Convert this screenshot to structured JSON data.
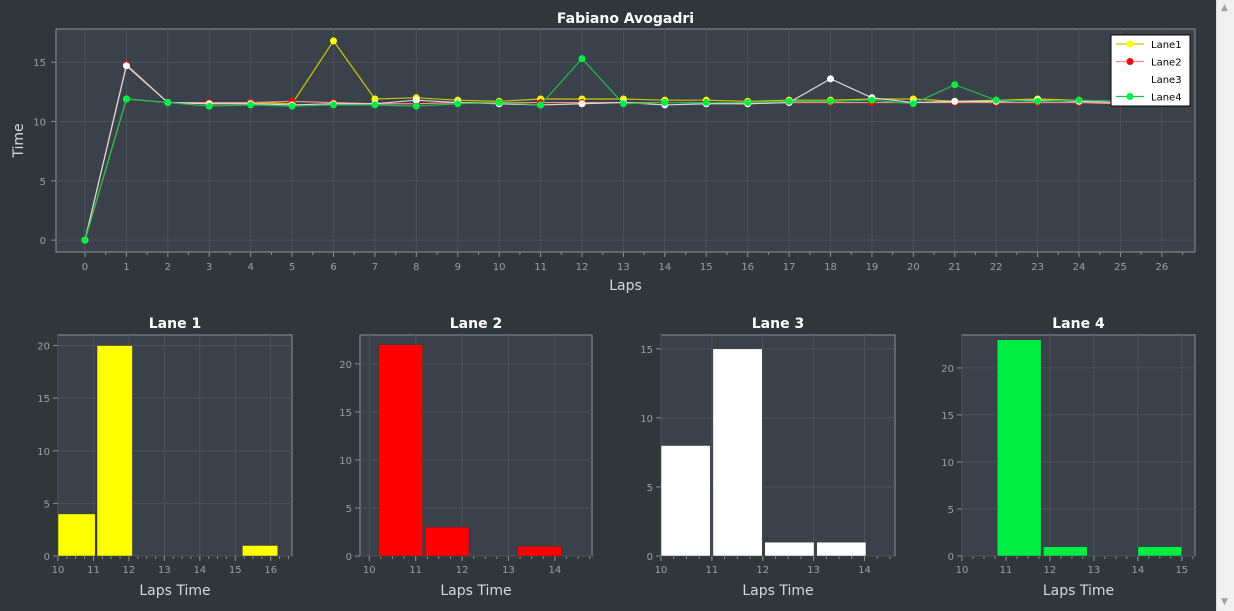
{
  "colors": {
    "background": "#31363b",
    "plot_bg": "#3b414a",
    "grid": "#4b525b",
    "axis": "#8a9097",
    "tick_text": "#9aa0a6",
    "label_text": "#d6d9dc",
    "title_text": "#ffffff",
    "lane1": "#ffff00",
    "lane2": "#ff0000",
    "lane3": "#ffffff",
    "lane4": "#00ee44",
    "lane1_line": "#c8c800",
    "lane2_line": "#ff8a8a",
    "lane3_line": "#d8d8d8",
    "lane4_line": "#22bb55"
  },
  "chart_data": [
    {
      "type": "line",
      "title": "Fabiano Avogadri",
      "xlabel": "Laps",
      "ylabel": "Time",
      "xlim": [
        -0.7,
        26.8
      ],
      "ylim": [
        -1,
        17.8
      ],
      "xticks": [
        "0",
        "1",
        "2",
        "3",
        "4",
        "5",
        "6",
        "7",
        "8",
        "9",
        "10",
        "11",
        "12",
        "13",
        "14",
        "15",
        "16",
        "17",
        "18",
        "19",
        "20",
        "21",
        "22",
        "23",
        "24",
        "25",
        "26"
      ],
      "yticks": [
        "0",
        "5",
        "10",
        "15"
      ],
      "grid": true,
      "legend": "top-right",
      "series": [
        {
          "name": "Lane1",
          "x": [
            0,
            1,
            2,
            3,
            4,
            5,
            6,
            7,
            8,
            9,
            10,
            11,
            12,
            13,
            14,
            15,
            16,
            17,
            18,
            19,
            20,
            21,
            22,
            23,
            24,
            25,
            26
          ],
          "values": [
            0,
            11.9,
            11.6,
            11.5,
            11.6,
            11.5,
            16.8,
            11.9,
            12.0,
            11.8,
            11.7,
            11.9,
            11.9,
            11.9,
            11.8,
            11.8,
            11.7,
            11.8,
            11.8,
            11.9,
            11.9,
            11.7,
            11.8,
            11.9,
            11.8,
            11.7,
            11.9
          ]
        },
        {
          "name": "Lane2",
          "x": [
            0,
            1,
            2,
            3,
            4,
            5,
            6,
            7,
            8,
            9,
            10,
            11,
            12,
            13,
            14,
            15,
            16,
            17,
            18,
            19,
            20,
            21,
            22,
            23,
            24,
            25
          ],
          "values": [
            0,
            14.8,
            11.6,
            11.6,
            11.6,
            11.7,
            11.6,
            11.5,
            11.5,
            11.6,
            11.6,
            11.6,
            11.6,
            11.6,
            11.6,
            11.6,
            11.5,
            11.6,
            11.6,
            11.6,
            11.6,
            11.6,
            11.6,
            11.6,
            11.6,
            11.5
          ]
        },
        {
          "name": "Lane3",
          "x": [
            0,
            1,
            2,
            3,
            4,
            5,
            6,
            7,
            8,
            9,
            10,
            11,
            12,
            13,
            14,
            15,
            16,
            17,
            18,
            19,
            20,
            21,
            22,
            23,
            24,
            25,
            26
          ],
          "values": [
            0,
            14.7,
            11.6,
            11.5,
            11.5,
            11.4,
            11.5,
            11.5,
            11.8,
            11.6,
            11.5,
            11.4,
            11.5,
            11.6,
            11.4,
            11.5,
            11.5,
            11.6,
            13.6,
            12.0,
            11.6,
            11.7,
            11.7,
            11.8,
            11.7,
            11.6,
            11.8
          ]
        },
        {
          "name": "Lane4",
          "x": [
            0,
            1,
            2,
            3,
            4,
            5,
            6,
            7,
            8,
            9,
            10,
            11,
            12,
            13,
            14,
            15,
            16,
            17,
            18,
            19,
            20,
            21,
            22,
            23,
            24,
            25,
            26
          ],
          "values": [
            0,
            11.9,
            11.6,
            11.3,
            11.4,
            11.3,
            11.4,
            11.4,
            11.3,
            11.5,
            11.6,
            11.4,
            15.3,
            11.5,
            11.6,
            11.6,
            11.6,
            11.7,
            11.7,
            11.8,
            11.5,
            13.1,
            11.8,
            11.7,
            11.8,
            11.7,
            11.9
          ]
        }
      ]
    },
    {
      "type": "bar",
      "title": "Lane 1",
      "xlabel": "Laps Time",
      "series_color": "lane1",
      "xlim": [
        10,
        16.6
      ],
      "ylim": [
        0,
        21
      ],
      "xticks": [
        10,
        11,
        12,
        13,
        14,
        15,
        16
      ],
      "yticks": [
        0,
        5,
        10,
        15,
        20
      ],
      "bins": [
        {
          "x0": 10,
          "x1": 11.05,
          "value": 4
        },
        {
          "x0": 11.1,
          "x1": 12.1,
          "value": 20
        },
        {
          "x0": 15.2,
          "x1": 16.2,
          "value": 1
        }
      ]
    },
    {
      "type": "bar",
      "title": "Lane 2",
      "xlabel": "Laps Time",
      "series_color": "lane2",
      "xlim": [
        9.8,
        14.8
      ],
      "ylim": [
        0,
        23
      ],
      "xticks": [
        10,
        11,
        12,
        13,
        14
      ],
      "yticks": [
        0,
        5,
        10,
        15,
        20
      ],
      "bins": [
        {
          "x0": 10.2,
          "x1": 11.15,
          "value": 22
        },
        {
          "x0": 11.2,
          "x1": 12.15,
          "value": 3
        },
        {
          "x0": 13.2,
          "x1": 14.15,
          "value": 1
        }
      ]
    },
    {
      "type": "bar",
      "title": "Lane 3",
      "xlabel": "Laps Time",
      "series_color": "lane3",
      "xlim": [
        10,
        14.6
      ],
      "ylim": [
        0,
        16
      ],
      "xticks": [
        10,
        11,
        12,
        13,
        14
      ],
      "yticks": [
        0,
        5,
        10,
        15
      ],
      "bins": [
        {
          "x0": 10,
          "x1": 10.97,
          "value": 8
        },
        {
          "x0": 11.02,
          "x1": 11.99,
          "value": 15
        },
        {
          "x0": 12.04,
          "x1": 13.01,
          "value": 1
        },
        {
          "x0": 13.06,
          "x1": 14.03,
          "value": 1
        }
      ]
    },
    {
      "type": "bar",
      "title": "Lane 4",
      "xlabel": "Laps Time",
      "series_color": "lane4",
      "xlim": [
        10,
        15.3
      ],
      "ylim": [
        0,
        23.5
      ],
      "xticks": [
        10,
        11,
        12,
        13,
        14,
        15
      ],
      "yticks": [
        0,
        5,
        10,
        15,
        20
      ],
      "bins": [
        {
          "x0": 10.8,
          "x1": 11.8,
          "value": 23
        },
        {
          "x0": 11.85,
          "x1": 12.85,
          "value": 1
        },
        {
          "x0": 14.0,
          "x1": 15.0,
          "value": 1
        }
      ]
    }
  ]
}
